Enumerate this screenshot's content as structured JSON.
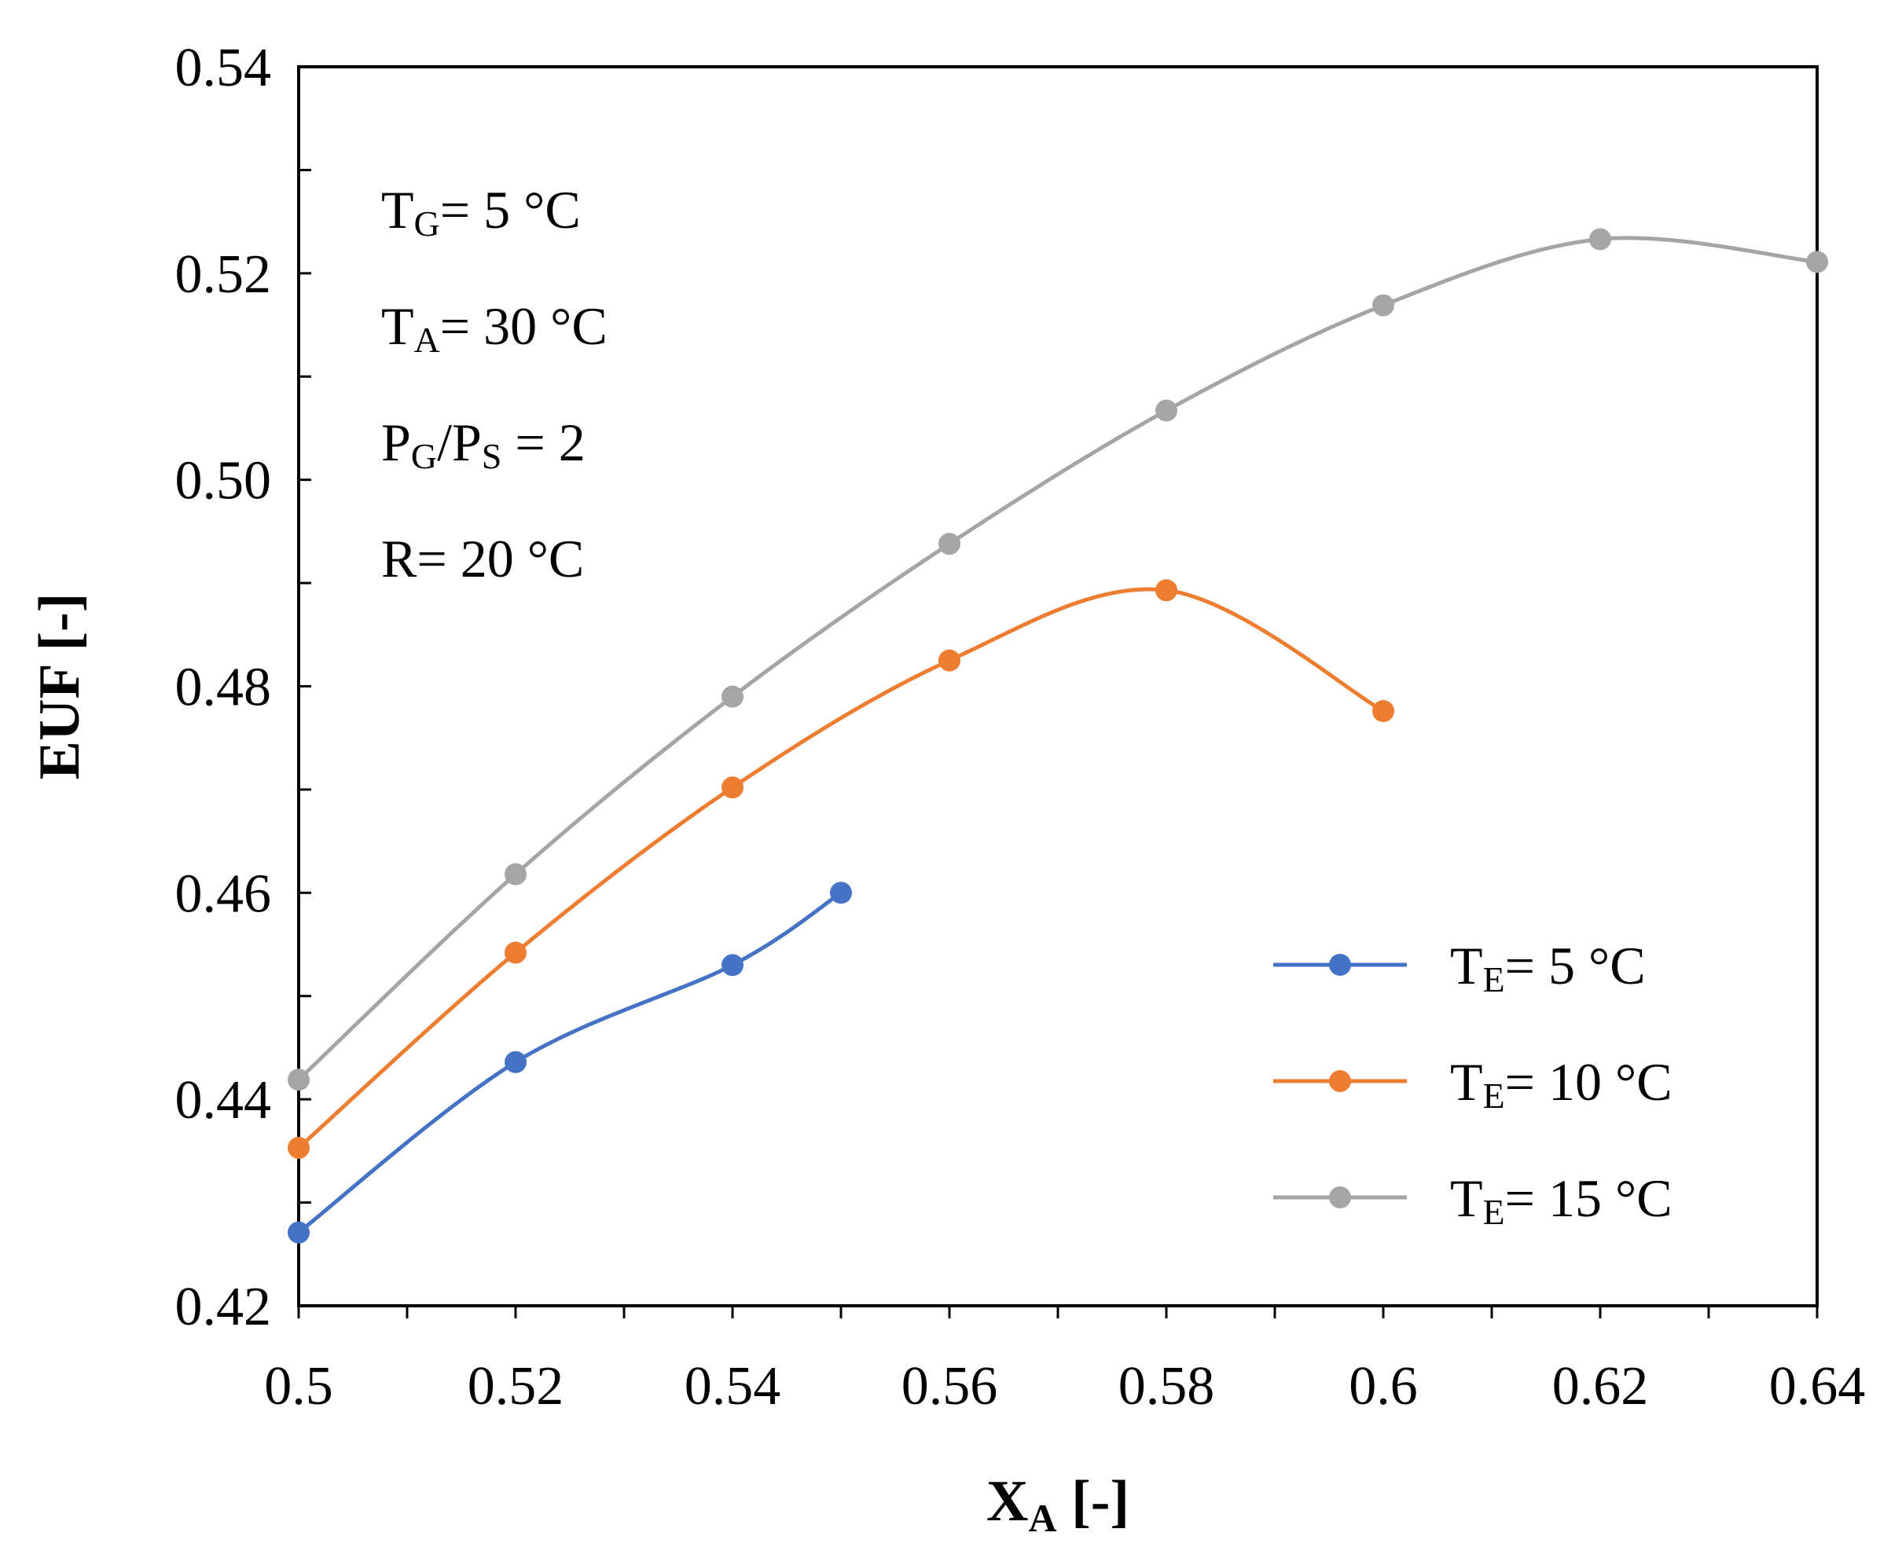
{
  "chart_data": {
    "type": "line",
    "title": "",
    "xlabel": {
      "main": "X",
      "sub": "A",
      "suffix": " [-]"
    },
    "ylabel": "EUF [-]",
    "xlim": [
      0.5,
      0.64
    ],
    "ylim": [
      0.42,
      0.54
    ],
    "xticks": [
      0.5,
      0.52,
      0.54,
      0.56,
      0.58,
      0.6,
      0.62,
      0.64
    ],
    "xtick_labels": [
      "0.5",
      "0.52",
      "0.54",
      "0.56",
      "0.58",
      "0.6",
      "0.62",
      "0.64"
    ],
    "yticks": [
      0.42,
      0.44,
      0.46,
      0.48,
      0.5,
      0.52,
      0.54
    ],
    "ytick_labels": [
      "0.42",
      "0.44",
      "0.46",
      "0.48",
      "0.50",
      "0.52",
      "0.54"
    ],
    "x_minor_step": 0.01,
    "y_minor_step": 0.01,
    "grid": false,
    "legend_position": "bottom-right",
    "annotations": [
      {
        "main": "T",
        "sub": "G",
        "rest": "= 5 °C"
      },
      {
        "main": "T",
        "sub": "A",
        "rest": "= 30 °C"
      },
      {
        "parts": [
          [
            "P",
            ""
          ],
          [
            "G",
            "sub"
          ],
          [
            "/P",
            ""
          ],
          [
            "S",
            "sub"
          ],
          [
            " = 2",
            ""
          ]
        ]
      },
      {
        "main": "R",
        "sub": "",
        "rest": "= 20 °C"
      }
    ],
    "series": [
      {
        "name": "TE= 5 °C",
        "legend_main": "T",
        "legend_sub": "E",
        "legend_rest": "= 5 °C",
        "color": "#4472C4",
        "x": [
          0.5,
          0.52,
          0.54,
          0.55
        ],
        "y": [
          0.4271,
          0.4436,
          0.453,
          0.46
        ]
      },
      {
        "name": "TE= 10 °C",
        "legend_main": "T",
        "legend_sub": "E",
        "legend_rest": "= 10 °C",
        "color": "#ED7D31",
        "x": [
          0.5,
          0.52,
          0.54,
          0.56,
          0.58,
          0.6
        ],
        "y": [
          0.4353,
          0.4542,
          0.4702,
          0.4825,
          0.4893,
          0.4776
        ]
      },
      {
        "name": "TE= 15 °C",
        "legend_main": "T",
        "legend_sub": "E",
        "legend_rest": "= 15 °C",
        "color": "#A5A5A5",
        "x": [
          0.5,
          0.52,
          0.54,
          0.56,
          0.58,
          0.6,
          0.62,
          0.64
        ],
        "y": [
          0.4419,
          0.4618,
          0.479,
          0.4938,
          0.5067,
          0.5169,
          0.5233,
          0.5211
        ]
      }
    ]
  }
}
